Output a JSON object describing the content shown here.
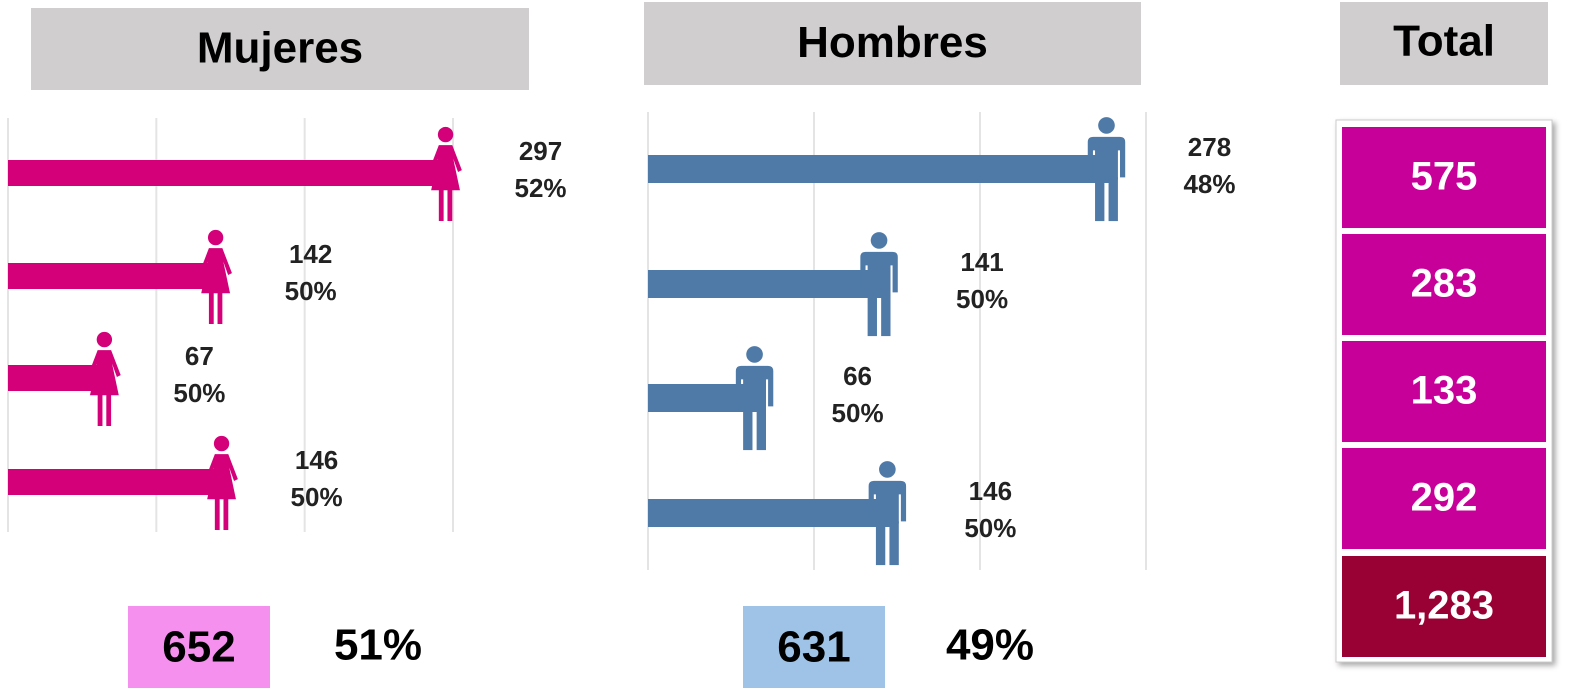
{
  "chart_data": [
    {
      "type": "bar",
      "orientation": "horizontal",
      "title": "Mujeres",
      "icon": "female",
      "values": [
        297,
        142,
        67,
        146
      ],
      "percent_values": [
        52,
        50,
        50,
        50
      ],
      "percent_labels": [
        "52%",
        "50%",
        "50%",
        "50%"
      ],
      "color": "#d4007a",
      "xlim": [
        0,
        300
      ],
      "xticks": [
        0,
        100,
        200,
        300
      ],
      "grid": true,
      "total": 652,
      "total_color": "#f590ee",
      "total_share": 51,
      "total_share_label": "51%"
    },
    {
      "type": "bar",
      "orientation": "horizontal",
      "title": "Hombres",
      "icon": "male",
      "values": [
        278,
        141,
        66,
        146
      ],
      "percent_values": [
        48,
        50,
        50,
        50
      ],
      "percent_labels": [
        "48%",
        "50%",
        "50%",
        "50%"
      ],
      "color": "#4f7aa8",
      "xlim": [
        0,
        300
      ],
      "xticks": [
        0,
        100,
        200,
        300
      ],
      "grid": true,
      "total": 631,
      "total_color": "#9fc3e6",
      "total_share": 49,
      "total_share_label": "49%"
    }
  ],
  "totals": {
    "title": "Total",
    "values": [
      575,
      283,
      133,
      292
    ],
    "color": "#c8009a",
    "grand_total": 1283,
    "grand_total_label": "1,283",
    "grand_total_color": "#990033"
  }
}
